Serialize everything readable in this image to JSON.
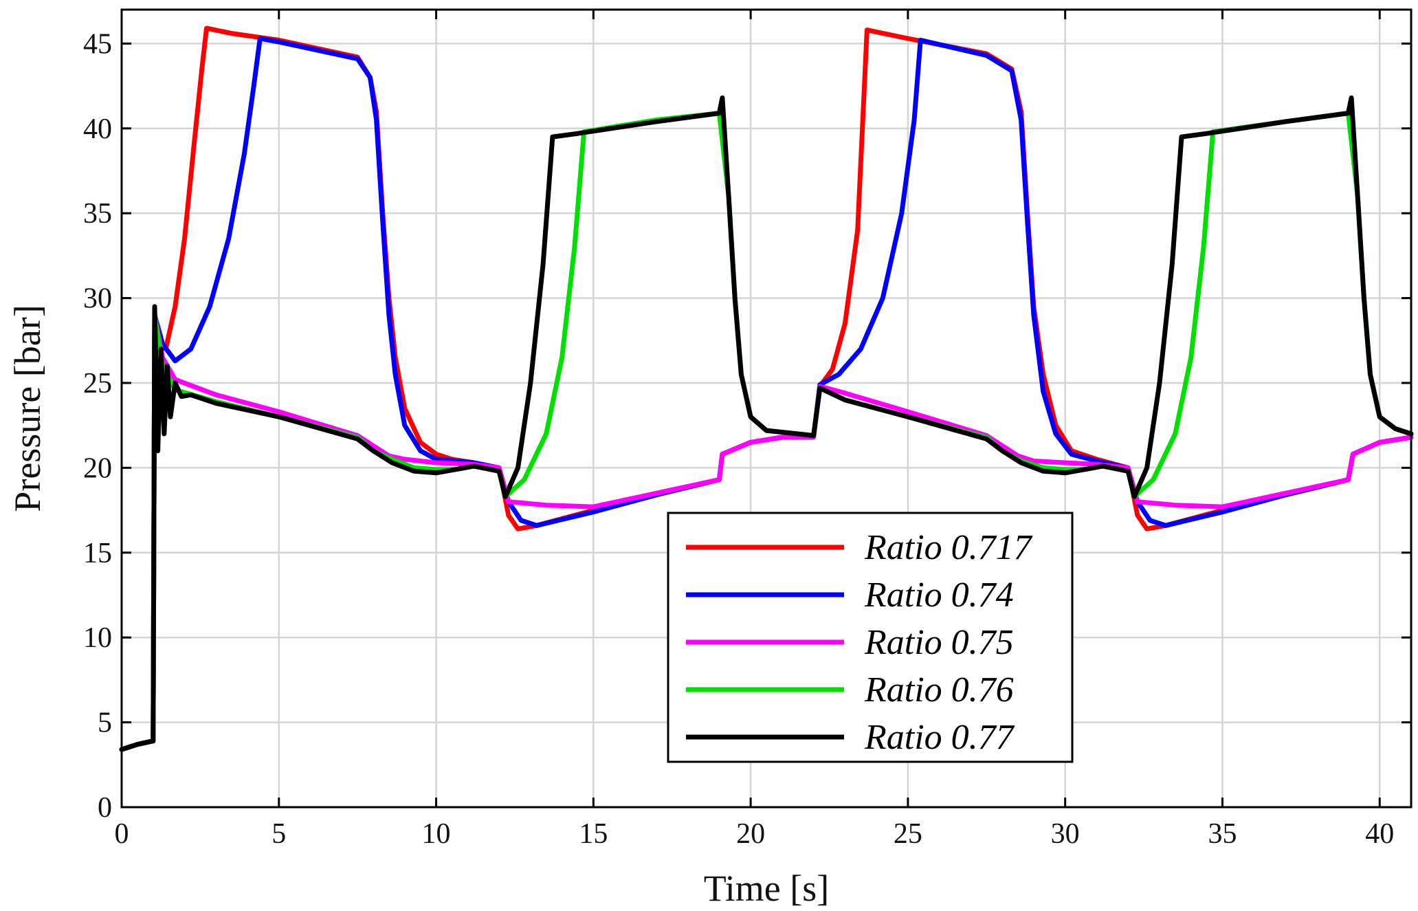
{
  "chart_data": {
    "type": "line",
    "title": "",
    "xlabel": "Time [s]",
    "ylabel": "Pressure [bar]",
    "xlim": [
      0,
      41
    ],
    "ylim": [
      0,
      47
    ],
    "xticks": [
      0,
      5,
      10,
      15,
      20,
      25,
      30,
      35,
      40
    ],
    "yticks": [
      0,
      5,
      10,
      15,
      20,
      25,
      30,
      35,
      40,
      45
    ],
    "grid": true,
    "legend_position": "bottom-center",
    "series": [
      {
        "name": "Ratio 0.717",
        "color": "#ff0000",
        "points": [
          [
            0,
            3.4
          ],
          [
            0.5,
            3.7
          ],
          [
            1.0,
            3.9
          ],
          [
            1.05,
            29.0
          ],
          [
            1.2,
            27.5
          ],
          [
            1.4,
            27.0
          ],
          [
            1.7,
            29.5
          ],
          [
            2.0,
            33.5
          ],
          [
            2.3,
            39.0
          ],
          [
            2.55,
            43.5
          ],
          [
            2.7,
            45.9
          ],
          [
            3.5,
            45.6
          ],
          [
            5,
            45.2
          ],
          [
            7.5,
            44.2
          ],
          [
            7.9,
            43.0
          ],
          [
            8.1,
            41.0
          ],
          [
            8.3,
            35.0
          ],
          [
            8.5,
            30.0
          ],
          [
            8.7,
            26.5
          ],
          [
            9.0,
            23.5
          ],
          [
            9.5,
            21.5
          ],
          [
            10.0,
            20.8
          ],
          [
            10.5,
            20.5
          ],
          [
            11.2,
            20.3
          ],
          [
            12.0,
            20.0
          ],
          [
            12.3,
            17.2
          ],
          [
            12.6,
            16.4
          ],
          [
            13.2,
            16.6
          ],
          [
            15,
            17.5
          ],
          [
            17,
            18.5
          ],
          [
            19.0,
            19.3
          ],
          [
            19.1,
            20.8
          ],
          [
            20,
            21.5
          ],
          [
            21,
            21.8
          ],
          [
            22.0,
            21.8
          ],
          [
            22.2,
            24.8
          ],
          [
            22.6,
            25.8
          ],
          [
            23.0,
            28.5
          ],
          [
            23.4,
            34.0
          ],
          [
            23.7,
            45.8
          ],
          [
            25,
            45.3
          ],
          [
            27.5,
            44.4
          ],
          [
            28.3,
            43.5
          ],
          [
            28.6,
            41.0
          ],
          [
            28.8,
            35.0
          ],
          [
            29.0,
            29.5
          ],
          [
            29.3,
            25.5
          ],
          [
            29.7,
            22.5
          ],
          [
            30.2,
            21.0
          ],
          [
            31.0,
            20.5
          ],
          [
            32.0,
            20.0
          ],
          [
            32.3,
            17.2
          ],
          [
            32.6,
            16.4
          ],
          [
            33.2,
            16.6
          ],
          [
            35,
            17.5
          ],
          [
            37,
            18.4
          ],
          [
            39.0,
            19.3
          ],
          [
            39.15,
            20.8
          ],
          [
            40,
            21.5
          ],
          [
            41,
            21.8
          ]
        ]
      },
      {
        "name": "Ratio 0.74",
        "color": "#0000ff",
        "points": [
          [
            0,
            3.4
          ],
          [
            0.5,
            3.7
          ],
          [
            1.0,
            3.9
          ],
          [
            1.05,
            29.0
          ],
          [
            1.3,
            27.3
          ],
          [
            1.7,
            26.3
          ],
          [
            2.2,
            27.0
          ],
          [
            2.8,
            29.5
          ],
          [
            3.4,
            33.5
          ],
          [
            3.9,
            38.5
          ],
          [
            4.2,
            42.5
          ],
          [
            4.4,
            45.3
          ],
          [
            5,
            45.1
          ],
          [
            7.5,
            44.1
          ],
          [
            7.9,
            43.0
          ],
          [
            8.1,
            40.5
          ],
          [
            8.3,
            34.5
          ],
          [
            8.5,
            29.0
          ],
          [
            8.7,
            25.5
          ],
          [
            9.0,
            22.5
          ],
          [
            9.5,
            21.0
          ],
          [
            10.0,
            20.5
          ],
          [
            11.2,
            20.3
          ],
          [
            12.0,
            20.0
          ],
          [
            12.3,
            18.0
          ],
          [
            12.7,
            16.9
          ],
          [
            13.2,
            16.6
          ],
          [
            15,
            17.4
          ],
          [
            17,
            18.4
          ],
          [
            19.0,
            19.3
          ],
          [
            19.1,
            20.8
          ],
          [
            20,
            21.5
          ],
          [
            21,
            21.8
          ],
          [
            22.0,
            21.8
          ],
          [
            22.2,
            24.9
          ],
          [
            22.8,
            25.5
          ],
          [
            23.5,
            27.0
          ],
          [
            24.2,
            30.0
          ],
          [
            24.8,
            35.0
          ],
          [
            25.2,
            40.5
          ],
          [
            25.4,
            45.2
          ],
          [
            27.5,
            44.3
          ],
          [
            28.3,
            43.4
          ],
          [
            28.6,
            40.5
          ],
          [
            28.8,
            34.5
          ],
          [
            29.0,
            29.0
          ],
          [
            29.3,
            24.5
          ],
          [
            29.7,
            22.0
          ],
          [
            30.2,
            20.8
          ],
          [
            31.0,
            20.4
          ],
          [
            32.0,
            20.0
          ],
          [
            32.3,
            18.0
          ],
          [
            32.7,
            16.9
          ],
          [
            33.2,
            16.6
          ],
          [
            35,
            17.4
          ],
          [
            37,
            18.4
          ],
          [
            39.0,
            19.3
          ],
          [
            39.15,
            20.8
          ],
          [
            40,
            21.5
          ],
          [
            41,
            21.8
          ]
        ]
      },
      {
        "name": "Ratio 0.75",
        "color": "#ff00ff",
        "points": [
          [
            0,
            3.4
          ],
          [
            0.5,
            3.7
          ],
          [
            1.0,
            3.9
          ],
          [
            1.05,
            29.0
          ],
          [
            1.3,
            26.5
          ],
          [
            1.7,
            25.2
          ],
          [
            3.0,
            24.3
          ],
          [
            5,
            23.3
          ],
          [
            7.5,
            21.9
          ],
          [
            8.0,
            21.3
          ],
          [
            8.5,
            20.7
          ],
          [
            9.0,
            20.5
          ],
          [
            10.0,
            20.3
          ],
          [
            11.2,
            20.2
          ],
          [
            12.0,
            20.0
          ],
          [
            12.3,
            18.0
          ],
          [
            13.5,
            17.8
          ],
          [
            15,
            17.7
          ],
          [
            17,
            18.5
          ],
          [
            19.0,
            19.3
          ],
          [
            19.1,
            20.8
          ],
          [
            20,
            21.5
          ],
          [
            21,
            21.8
          ],
          [
            22.0,
            21.8
          ],
          [
            22.2,
            24.8
          ],
          [
            23.0,
            24.4
          ],
          [
            25,
            23.3
          ],
          [
            27.5,
            21.9
          ],
          [
            28.0,
            21.3
          ],
          [
            28.5,
            20.7
          ],
          [
            29.0,
            20.4
          ],
          [
            30.0,
            20.3
          ],
          [
            31.0,
            20.2
          ],
          [
            32.0,
            20.0
          ],
          [
            32.3,
            18.0
          ],
          [
            33.5,
            17.8
          ],
          [
            35,
            17.7
          ],
          [
            37,
            18.5
          ],
          [
            39.0,
            19.3
          ],
          [
            39.15,
            20.8
          ],
          [
            40,
            21.5
          ],
          [
            41,
            21.8
          ]
        ]
      },
      {
        "name": "Ratio 0.76",
        "color": "#00e000",
        "points": [
          [
            0,
            3.4
          ],
          [
            0.5,
            3.7
          ],
          [
            1.0,
            3.9
          ],
          [
            1.05,
            29.0
          ],
          [
            1.3,
            26.0
          ],
          [
            1.7,
            24.6
          ],
          [
            3.0,
            23.9
          ],
          [
            5,
            23.0
          ],
          [
            7.5,
            21.8
          ],
          [
            8.0,
            21.0
          ],
          [
            8.6,
            20.5
          ],
          [
            9.3,
            20.0
          ],
          [
            10.0,
            19.9
          ],
          [
            10.6,
            19.9
          ],
          [
            11.2,
            20.1
          ],
          [
            12.0,
            19.8
          ],
          [
            12.2,
            18.3
          ],
          [
            12.8,
            19.3
          ],
          [
            13.5,
            22.0
          ],
          [
            14.0,
            26.5
          ],
          [
            14.4,
            33.0
          ],
          [
            14.7,
            39.8
          ],
          [
            17,
            40.5
          ],
          [
            19.0,
            40.9
          ],
          [
            19.3,
            36.0
          ],
          [
            19.5,
            30.0
          ],
          [
            19.7,
            25.5
          ],
          [
            20.0,
            23.0
          ],
          [
            20.5,
            22.2
          ],
          [
            22.0,
            21.9
          ],
          [
            22.2,
            24.7
          ],
          [
            23.0,
            24.0
          ],
          [
            25,
            23.0
          ],
          [
            27.5,
            21.8
          ],
          [
            28.0,
            21.0
          ],
          [
            28.6,
            20.4
          ],
          [
            29.3,
            20.0
          ],
          [
            30.0,
            19.9
          ],
          [
            30.6,
            19.9
          ],
          [
            31.2,
            20.1
          ],
          [
            32.0,
            19.8
          ],
          [
            32.2,
            18.3
          ],
          [
            32.8,
            19.3
          ],
          [
            33.5,
            22.0
          ],
          [
            34.0,
            26.5
          ],
          [
            34.4,
            33.0
          ],
          [
            34.7,
            39.8
          ],
          [
            37,
            40.4
          ],
          [
            39.0,
            40.9
          ],
          [
            39.3,
            36.0
          ],
          [
            39.5,
            30.0
          ],
          [
            39.7,
            25.5
          ],
          [
            40.0,
            23.0
          ],
          [
            40.5,
            22.3
          ],
          [
            41,
            22.0
          ]
        ]
      },
      {
        "name": "Ratio 0.77",
        "color": "#000000",
        "points": [
          [
            0,
            3.4
          ],
          [
            0.5,
            3.7
          ],
          [
            1.0,
            3.9
          ],
          [
            1.05,
            29.5
          ],
          [
            1.15,
            21.0
          ],
          [
            1.25,
            27.0
          ],
          [
            1.35,
            22.0
          ],
          [
            1.45,
            26.0
          ],
          [
            1.55,
            23.0
          ],
          [
            1.7,
            25.0
          ],
          [
            1.9,
            24.2
          ],
          [
            2.2,
            24.3
          ],
          [
            3.0,
            23.8
          ],
          [
            5,
            23.0
          ],
          [
            7.5,
            21.7
          ],
          [
            8.0,
            21.0
          ],
          [
            8.6,
            20.3
          ],
          [
            9.3,
            19.8
          ],
          [
            10.0,
            19.7
          ],
          [
            10.6,
            19.9
          ],
          [
            11.2,
            20.1
          ],
          [
            12.0,
            19.8
          ],
          [
            12.2,
            18.3
          ],
          [
            12.6,
            20.0
          ],
          [
            13.0,
            25.0
          ],
          [
            13.4,
            32.0
          ],
          [
            13.7,
            39.5
          ],
          [
            14.5,
            39.7
          ],
          [
            17,
            40.4
          ],
          [
            19.0,
            40.9
          ],
          [
            19.1,
            41.8
          ],
          [
            19.3,
            36.0
          ],
          [
            19.5,
            30.0
          ],
          [
            19.7,
            25.5
          ],
          [
            20.0,
            23.0
          ],
          [
            20.5,
            22.2
          ],
          [
            22.0,
            21.9
          ],
          [
            22.2,
            24.7
          ],
          [
            23.0,
            24.0
          ],
          [
            25,
            23.0
          ],
          [
            27.5,
            21.7
          ],
          [
            28.0,
            21.0
          ],
          [
            28.6,
            20.3
          ],
          [
            29.3,
            19.8
          ],
          [
            30.0,
            19.7
          ],
          [
            30.6,
            19.9
          ],
          [
            31.2,
            20.1
          ],
          [
            32.0,
            19.8
          ],
          [
            32.2,
            18.3
          ],
          [
            32.6,
            20.0
          ],
          [
            33.0,
            25.0
          ],
          [
            33.4,
            32.0
          ],
          [
            33.7,
            39.5
          ],
          [
            34.5,
            39.7
          ],
          [
            37,
            40.4
          ],
          [
            39.0,
            40.9
          ],
          [
            39.1,
            41.8
          ],
          [
            39.3,
            36.0
          ],
          [
            39.5,
            30.0
          ],
          [
            39.7,
            25.5
          ],
          [
            40.0,
            23.0
          ],
          [
            40.5,
            22.3
          ],
          [
            41,
            22.0
          ]
        ]
      }
    ]
  }
}
